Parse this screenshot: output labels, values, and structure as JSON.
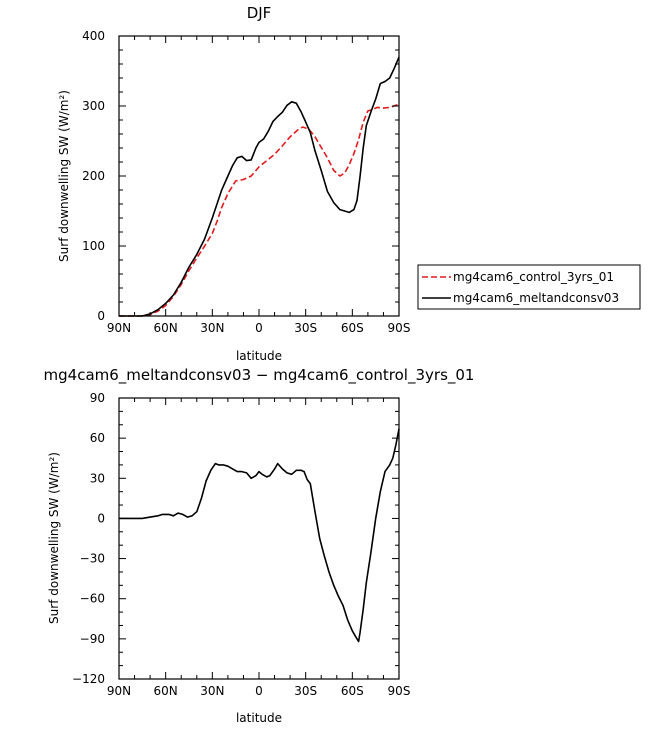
{
  "chart_data": [
    {
      "type": "line",
      "title": "DJF",
      "xlabel": "latitude",
      "ylabel": "Surf downwelling SW (W/m²)",
      "xlim": [
        90,
        -90
      ],
      "ylim": [
        0,
        400
      ],
      "x_ticks": [
        90,
        60,
        30,
        0,
        -30,
        -60,
        -90
      ],
      "x_tick_labels": [
        "90N",
        "60N",
        "30N",
        "0",
        "30S",
        "60S",
        "90S"
      ],
      "y_ticks": [
        0,
        100,
        200,
        300,
        400
      ],
      "y_tick_labels": [
        "0",
        "100",
        "200",
        "300",
        "400"
      ],
      "legend_position": "right",
      "series": [
        {
          "name": "mg4cam6_control_3yrs_01",
          "color": "#e31a1c",
          "dash": "dashed",
          "x": [
            90,
            85,
            80,
            75,
            70,
            65,
            60,
            55,
            50,
            45,
            40,
            35,
            30,
            27,
            24,
            20,
            15,
            10,
            5,
            0,
            -5,
            -10,
            -15,
            -20,
            -25,
            -28,
            -32,
            -36,
            -40,
            -44,
            -48,
            -52,
            -55,
            -58,
            -61,
            -64,
            -67,
            -70,
            -73,
            -76,
            -80,
            -84,
            -88,
            -90
          ],
          "values": [
            0,
            0,
            0,
            0,
            2,
            7,
            15,
            28,
            45,
            65,
            83,
            100,
            118,
            135,
            155,
            175,
            193,
            195,
            200,
            213,
            222,
            231,
            243,
            256,
            266,
            270,
            267,
            256,
            241,
            226,
            208,
            200,
            204,
            216,
            232,
            252,
            277,
            293,
            295,
            298,
            297,
            298,
            301,
            303
          ]
        },
        {
          "name": "mg4cam6_meltandconsv03",
          "color": "#000000",
          "dash": "solid",
          "x": [
            90,
            85,
            80,
            75,
            70,
            65,
            60,
            55,
            50,
            45,
            40,
            35,
            30,
            27,
            24,
            20,
            17,
            14,
            11,
            8,
            5,
            2,
            0,
            -3,
            -6,
            -9,
            -12,
            -15,
            -18,
            -21,
            -24,
            -27,
            -30,
            -33,
            -36,
            -40,
            -44,
            -48,
            -52,
            -55,
            -58,
            -61,
            -63,
            -65,
            -67,
            -69,
            -72,
            -75,
            -78,
            -81,
            -84,
            -87,
            -90
          ],
          "values": [
            0,
            0,
            0,
            0,
            3,
            9,
            18,
            30,
            48,
            70,
            88,
            110,
            140,
            160,
            180,
            200,
            215,
            226,
            228,
            222,
            223,
            240,
            248,
            253,
            264,
            278,
            285,
            291,
            301,
            306,
            304,
            292,
            277,
            262,
            236,
            208,
            178,
            162,
            152,
            150,
            148,
            152,
            165,
            200,
            240,
            272,
            292,
            310,
            332,
            335,
            340,
            354,
            370
          ]
        }
      ]
    },
    {
      "type": "line",
      "title": "mg4cam6_meltandconsv03 − mg4cam6_control_3yrs_01",
      "xlabel": "latitude",
      "ylabel": "Surf downwelling SW (W/m²)",
      "xlim": [
        90,
        -90
      ],
      "ylim": [
        -120,
        90
      ],
      "x_ticks": [
        90,
        60,
        30,
        0,
        -30,
        -60,
        -90
      ],
      "x_tick_labels": [
        "90N",
        "60N",
        "30N",
        "0",
        "30S",
        "60S",
        "90S"
      ],
      "y_ticks": [
        -120,
        -90,
        -60,
        -30,
        0,
        30,
        60,
        90
      ],
      "y_tick_labels": [
        "−120",
        "−90",
        "−60",
        "−30",
        "0",
        "30",
        "60",
        "90"
      ],
      "series": [
        {
          "color": "#000000",
          "dash": "solid",
          "x": [
            90,
            85,
            80,
            75,
            70,
            65,
            62,
            58,
            55,
            52,
            49,
            46,
            43,
            40,
            37,
            34,
            31,
            28,
            26,
            23,
            20,
            17,
            14,
            11,
            8,
            5,
            2,
            0,
            -2,
            -5,
            -7,
            -10,
            -12,
            -15,
            -18,
            -21,
            -24,
            -27,
            -29,
            -31,
            -33,
            -36,
            -39,
            -42,
            -45,
            -48,
            -51,
            -54,
            -57,
            -60,
            -62,
            -64,
            -65,
            -67,
            -69,
            -72,
            -75,
            -78,
            -81,
            -84,
            -86,
            -88,
            -90
          ],
          "values": [
            0,
            0,
            0,
            0,
            1,
            2,
            3,
            3,
            2,
            4,
            3,
            1,
            2,
            5,
            15,
            28,
            36,
            41,
            40,
            40,
            39,
            37,
            35,
            35,
            34,
            30,
            32,
            35,
            33,
            31,
            32,
            37,
            41,
            37,
            34,
            33,
            36,
            36,
            35,
            29,
            26,
            5,
            -15,
            -28,
            -40,
            -50,
            -58,
            -65,
            -76,
            -84,
            -88,
            -92,
            -85,
            -68,
            -48,
            -25,
            0,
            20,
            35,
            40,
            45,
            55,
            67
          ]
        }
      ]
    }
  ]
}
